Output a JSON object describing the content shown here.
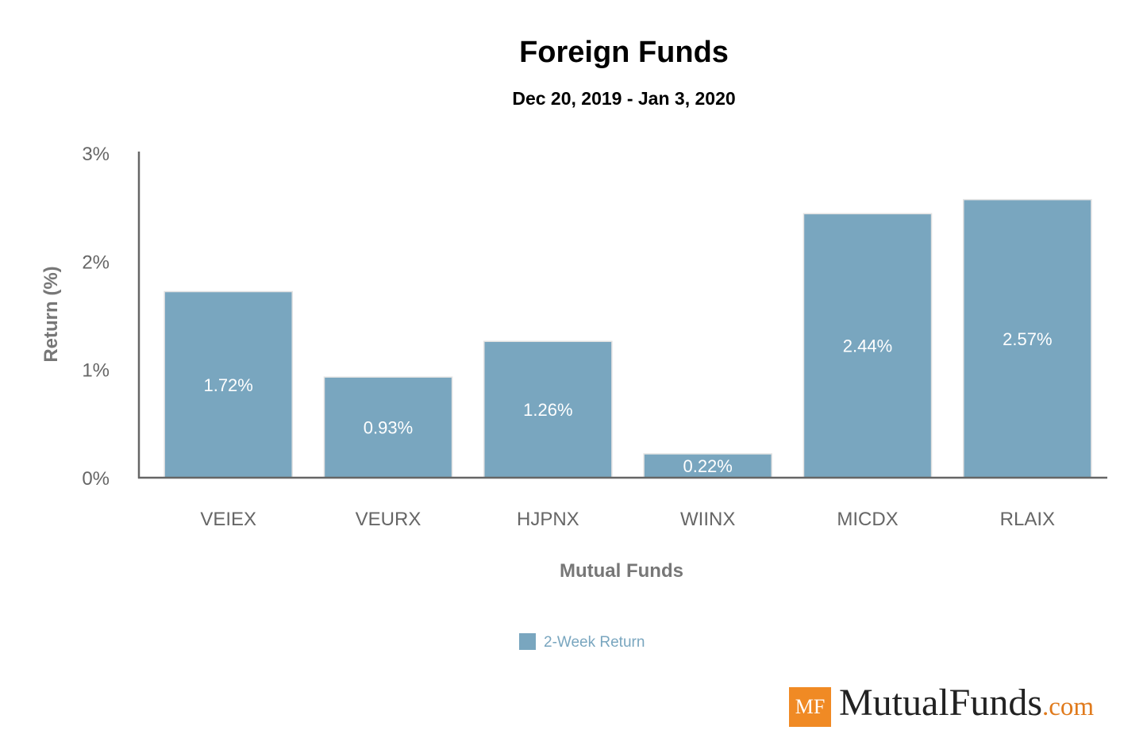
{
  "chart_data": {
    "type": "bar",
    "title": "Foreign Funds",
    "subtitle": "Dec 20, 2019 - Jan 3, 2020",
    "xlabel": "Mutual Funds",
    "ylabel": "Return (%)",
    "ylim": [
      0,
      3
    ],
    "yticks": [
      "0%",
      "1%",
      "2%",
      "3%"
    ],
    "categories": [
      "VEIEX",
      "VEURX",
      "HJPNX",
      "WIINX",
      "MICDX",
      "RLAIX"
    ],
    "series": [
      {
        "name": "2-Week Return",
        "values": [
          1.72,
          0.93,
          1.26,
          0.22,
          2.44,
          2.57
        ],
        "labels": [
          "1.72%",
          "0.93%",
          "1.26%",
          "0.22%",
          "2.44%",
          "2.57%"
        ],
        "color": "#79a6bf"
      }
    ],
    "grid": false,
    "legend": "bottom-center"
  },
  "brand": {
    "logo_mark": "MF",
    "logo_name": "MutualFunds",
    "logo_tld": ".com",
    "accent": "#f08a24"
  }
}
